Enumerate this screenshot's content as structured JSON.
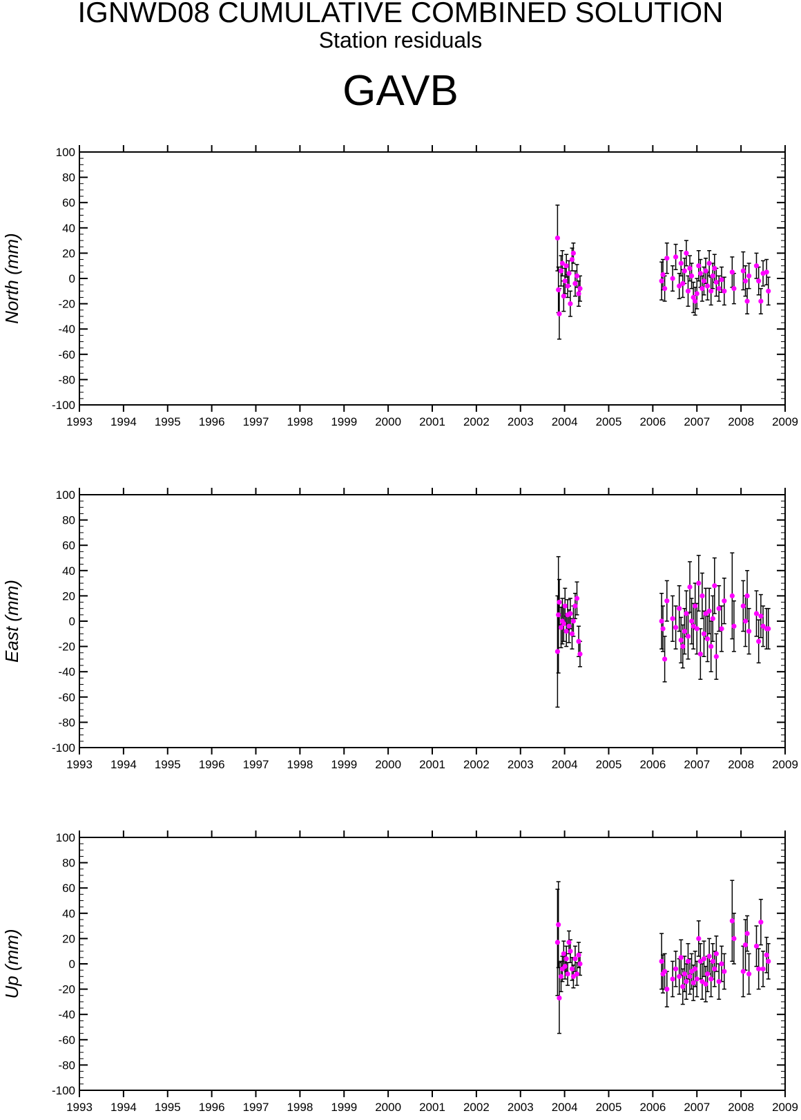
{
  "title": "IGNWD08 CUMULATIVE COMBINED SOLUTION",
  "subtitle": "Station residuals",
  "station": "GAVB",
  "colors": {
    "point": "#ff00ff",
    "errorbar": "#000000",
    "axis": "#000000"
  },
  "chart_data": [
    {
      "type": "scatter",
      "ylabel": "North (mm)",
      "xlim": [
        1993,
        2009
      ],
      "ylim": [
        -100,
        100
      ],
      "x_ticks": [
        "1993",
        "1994",
        "1995",
        "1996",
        "1997",
        "1998",
        "1999",
        "2000",
        "2001",
        "2002",
        "2003",
        "2004",
        "2005",
        "2006",
        "2007",
        "2008",
        "2009"
      ],
      "y_ticks": [
        "100",
        "80",
        "60",
        "40",
        "20",
        "0",
        "-20",
        "-40",
        "-60",
        "-80",
        "-100"
      ],
      "points": [
        {
          "x": 2003.84,
          "y": 32,
          "err": 26
        },
        {
          "x": 2003.86,
          "y": -9,
          "err": 18
        },
        {
          "x": 2003.88,
          "y": -28,
          "err": 20
        },
        {
          "x": 2003.92,
          "y": 6,
          "err": 12
        },
        {
          "x": 2003.95,
          "y": 12,
          "err": 10
        },
        {
          "x": 2003.98,
          "y": -14,
          "err": 12
        },
        {
          "x": 2004.01,
          "y": -2,
          "err": 10
        },
        {
          "x": 2004.04,
          "y": 10,
          "err": 9
        },
        {
          "x": 2004.07,
          "y": -6,
          "err": 9
        },
        {
          "x": 2004.1,
          "y": 4,
          "err": 10
        },
        {
          "x": 2004.13,
          "y": -20,
          "err": 10
        },
        {
          "x": 2004.17,
          "y": 15,
          "err": 9
        },
        {
          "x": 2004.2,
          "y": 20,
          "err": 8
        },
        {
          "x": 2004.24,
          "y": -4,
          "err": 10
        },
        {
          "x": 2004.28,
          "y": 2,
          "err": 9
        },
        {
          "x": 2004.32,
          "y": -12,
          "err": 10
        },
        {
          "x": 2004.35,
          "y": -8,
          "err": 10
        },
        {
          "x": 2006.2,
          "y": -2,
          "err": 15
        },
        {
          "x": 2006.23,
          "y": 3,
          "err": 12
        },
        {
          "x": 2006.27,
          "y": -8,
          "err": 10
        },
        {
          "x": 2006.32,
          "y": 16,
          "err": 12
        },
        {
          "x": 2006.45,
          "y": 0,
          "err": 10
        },
        {
          "x": 2006.52,
          "y": 17,
          "err": 10
        },
        {
          "x": 2006.6,
          "y": -6,
          "err": 10
        },
        {
          "x": 2006.64,
          "y": 12,
          "err": 10
        },
        {
          "x": 2006.68,
          "y": -4,
          "err": 11
        },
        {
          "x": 2006.72,
          "y": 6,
          "err": 10
        },
        {
          "x": 2006.76,
          "y": 20,
          "err": 10
        },
        {
          "x": 2006.8,
          "y": -10,
          "err": 12
        },
        {
          "x": 2006.84,
          "y": 8,
          "err": 10
        },
        {
          "x": 2006.88,
          "y": 2,
          "err": 10
        },
        {
          "x": 2006.92,
          "y": -15,
          "err": 12
        },
        {
          "x": 2006.96,
          "y": -18,
          "err": 11
        },
        {
          "x": 2007.0,
          "y": -12,
          "err": 12
        },
        {
          "x": 2007.04,
          "y": 10,
          "err": 12
        },
        {
          "x": 2007.08,
          "y": 4,
          "err": 11
        },
        {
          "x": 2007.12,
          "y": -8,
          "err": 10
        },
        {
          "x": 2007.16,
          "y": -2,
          "err": 11
        },
        {
          "x": 2007.2,
          "y": 6,
          "err": 10
        },
        {
          "x": 2007.24,
          "y": -6,
          "err": 11
        },
        {
          "x": 2007.28,
          "y": 12,
          "err": 10
        },
        {
          "x": 2007.32,
          "y": -10,
          "err": 11
        },
        {
          "x": 2007.36,
          "y": 2,
          "err": 10
        },
        {
          "x": 2007.4,
          "y": 8,
          "err": 11
        },
        {
          "x": 2007.44,
          "y": -3,
          "err": 11
        },
        {
          "x": 2007.5,
          "y": -8,
          "err": 10
        },
        {
          "x": 2007.56,
          "y": -1,
          "err": 10
        },
        {
          "x": 2007.62,
          "y": -10,
          "err": 11
        },
        {
          "x": 2007.8,
          "y": 5,
          "err": 12
        },
        {
          "x": 2007.84,
          "y": -8,
          "err": 12
        },
        {
          "x": 2008.05,
          "y": 6,
          "err": 15
        },
        {
          "x": 2008.1,
          "y": -2,
          "err": 12
        },
        {
          "x": 2008.14,
          "y": -18,
          "err": 10
        },
        {
          "x": 2008.18,
          "y": 2,
          "err": 10
        },
        {
          "x": 2008.35,
          "y": 10,
          "err": 10
        },
        {
          "x": 2008.4,
          "y": -2,
          "err": 11
        },
        {
          "x": 2008.45,
          "y": -18,
          "err": 10
        },
        {
          "x": 2008.5,
          "y": 4,
          "err": 10
        },
        {
          "x": 2008.58,
          "y": 5,
          "err": 10
        },
        {
          "x": 2008.62,
          "y": -10,
          "err": 11
        }
      ]
    },
    {
      "type": "scatter",
      "ylabel": "East (mm)",
      "xlim": [
        1993,
        2009
      ],
      "ylim": [
        -100,
        100
      ],
      "x_ticks": [
        "1993",
        "1994",
        "1995",
        "1996",
        "1997",
        "1998",
        "1999",
        "2000",
        "2001",
        "2002",
        "2003",
        "2004",
        "2005",
        "2006",
        "2007",
        "2008",
        "2009"
      ],
      "y_ticks": [
        "100",
        "80",
        "60",
        "40",
        "20",
        "0",
        "-20",
        "-40",
        "-60",
        "-80",
        "-100"
      ],
      "points": [
        {
          "x": 2003.84,
          "y": -24,
          "err": 44
        },
        {
          "x": 2003.86,
          "y": 5,
          "err": 46
        },
        {
          "x": 2003.88,
          "y": 15,
          "err": 18
        },
        {
          "x": 2003.92,
          "y": -5,
          "err": 16
        },
        {
          "x": 2003.95,
          "y": 0,
          "err": 18
        },
        {
          "x": 2003.98,
          "y": -2,
          "err": 14
        },
        {
          "x": 2004.01,
          "y": 12,
          "err": 14
        },
        {
          "x": 2004.04,
          "y": -8,
          "err": 12
        },
        {
          "x": 2004.07,
          "y": 5,
          "err": 12
        },
        {
          "x": 2004.1,
          "y": -4,
          "err": 13
        },
        {
          "x": 2004.13,
          "y": 6,
          "err": 12
        },
        {
          "x": 2004.17,
          "y": -10,
          "err": 12
        },
        {
          "x": 2004.2,
          "y": 0,
          "err": 12
        },
        {
          "x": 2004.24,
          "y": 12,
          "err": 10
        },
        {
          "x": 2004.28,
          "y": 18,
          "err": 13
        },
        {
          "x": 2004.32,
          "y": -16,
          "err": 12
        },
        {
          "x": 2004.35,
          "y": -26,
          "err": 10
        },
        {
          "x": 2006.2,
          "y": 0,
          "err": 22
        },
        {
          "x": 2006.23,
          "y": -6,
          "err": 18
        },
        {
          "x": 2006.27,
          "y": -30,
          "err": 18
        },
        {
          "x": 2006.32,
          "y": 16,
          "err": 16
        },
        {
          "x": 2006.45,
          "y": 2,
          "err": 18
        },
        {
          "x": 2006.52,
          "y": -5,
          "err": 17
        },
        {
          "x": 2006.6,
          "y": 10,
          "err": 18
        },
        {
          "x": 2006.64,
          "y": -15,
          "err": 18
        },
        {
          "x": 2006.68,
          "y": -20,
          "err": 17
        },
        {
          "x": 2006.72,
          "y": -8,
          "err": 18
        },
        {
          "x": 2006.76,
          "y": 6,
          "err": 18
        },
        {
          "x": 2006.8,
          "y": -12,
          "err": 18
        },
        {
          "x": 2006.84,
          "y": 27,
          "err": 20
        },
        {
          "x": 2006.88,
          "y": 0,
          "err": 18
        },
        {
          "x": 2006.92,
          "y": -4,
          "err": 18
        },
        {
          "x": 2006.96,
          "y": 12,
          "err": 18
        },
        {
          "x": 2007.0,
          "y": -6,
          "err": 20
        },
        {
          "x": 2007.04,
          "y": 30,
          "err": 22
        },
        {
          "x": 2007.08,
          "y": -26,
          "err": 20
        },
        {
          "x": 2007.12,
          "y": 20,
          "err": 18
        },
        {
          "x": 2007.16,
          "y": -10,
          "err": 18
        },
        {
          "x": 2007.2,
          "y": 6,
          "err": 20
        },
        {
          "x": 2007.24,
          "y": -14,
          "err": 18
        },
        {
          "x": 2007.28,
          "y": 8,
          "err": 18
        },
        {
          "x": 2007.32,
          "y": -20,
          "err": 20
        },
        {
          "x": 2007.36,
          "y": 2,
          "err": 18
        },
        {
          "x": 2007.4,
          "y": 28,
          "err": 22
        },
        {
          "x": 2007.44,
          "y": -28,
          "err": 18
        },
        {
          "x": 2007.5,
          "y": 10,
          "err": 18
        },
        {
          "x": 2007.56,
          "y": -6,
          "err": 18
        },
        {
          "x": 2007.62,
          "y": 16,
          "err": 18
        },
        {
          "x": 2007.8,
          "y": 20,
          "err": 34
        },
        {
          "x": 2007.84,
          "y": -4,
          "err": 20
        },
        {
          "x": 2008.05,
          "y": 12,
          "err": 20
        },
        {
          "x": 2008.1,
          "y": 0,
          "err": 20
        },
        {
          "x": 2008.14,
          "y": 20,
          "err": 20
        },
        {
          "x": 2008.18,
          "y": -8,
          "err": 18
        },
        {
          "x": 2008.35,
          "y": 6,
          "err": 18
        },
        {
          "x": 2008.4,
          "y": -16,
          "err": 17
        },
        {
          "x": 2008.45,
          "y": 4,
          "err": 17
        },
        {
          "x": 2008.5,
          "y": -4,
          "err": 16
        },
        {
          "x": 2008.58,
          "y": -6,
          "err": 16
        },
        {
          "x": 2008.62,
          "y": -6,
          "err": 16
        }
      ]
    },
    {
      "type": "scatter",
      "ylabel": "Up (mm)",
      "xlim": [
        1993,
        2009
      ],
      "ylim": [
        -100,
        100
      ],
      "x_ticks": [
        "1993",
        "1994",
        "1995",
        "1996",
        "1997",
        "1998",
        "1999",
        "2000",
        "2001",
        "2002",
        "2003",
        "2004",
        "2005",
        "2006",
        "2007",
        "2008",
        "2009"
      ],
      "y_ticks": [
        "100",
        "80",
        "60",
        "40",
        "20",
        "0",
        "-20",
        "-40",
        "-60",
        "-80",
        "-100"
      ],
      "points": [
        {
          "x": 2003.84,
          "y": 17,
          "err": 42
        },
        {
          "x": 2003.86,
          "y": 31,
          "err": 34
        },
        {
          "x": 2003.88,
          "y": -27,
          "err": 28
        },
        {
          "x": 2003.92,
          "y": -10,
          "err": 12
        },
        {
          "x": 2003.95,
          "y": -4,
          "err": 10
        },
        {
          "x": 2003.98,
          "y": 8,
          "err": 10
        },
        {
          "x": 2004.01,
          "y": -2,
          "err": 10
        },
        {
          "x": 2004.04,
          "y": 4,
          "err": 10
        },
        {
          "x": 2004.07,
          "y": -8,
          "err": 9
        },
        {
          "x": 2004.1,
          "y": 17,
          "err": 9
        },
        {
          "x": 2004.13,
          "y": 10,
          "err": 9
        },
        {
          "x": 2004.17,
          "y": -4,
          "err": 9
        },
        {
          "x": 2004.2,
          "y": -10,
          "err": 9
        },
        {
          "x": 2004.24,
          "y": 4,
          "err": 10
        },
        {
          "x": 2004.28,
          "y": -8,
          "err": 9
        },
        {
          "x": 2004.32,
          "y": 7,
          "err": 10
        },
        {
          "x": 2004.35,
          "y": 0,
          "err": 9
        },
        {
          "x": 2006.2,
          "y": 2,
          "err": 22
        },
        {
          "x": 2006.23,
          "y": -8,
          "err": 15
        },
        {
          "x": 2006.27,
          "y": -6,
          "err": 14
        },
        {
          "x": 2006.32,
          "y": -20,
          "err": 14
        },
        {
          "x": 2006.45,
          "y": -12,
          "err": 14
        },
        {
          "x": 2006.52,
          "y": -4,
          "err": 14
        },
        {
          "x": 2006.6,
          "y": -10,
          "err": 14
        },
        {
          "x": 2006.64,
          "y": 5,
          "err": 14
        },
        {
          "x": 2006.68,
          "y": -18,
          "err": 14
        },
        {
          "x": 2006.72,
          "y": -8,
          "err": 14
        },
        {
          "x": 2006.76,
          "y": -14,
          "err": 14
        },
        {
          "x": 2006.8,
          "y": 2,
          "err": 14
        },
        {
          "x": 2006.84,
          "y": -10,
          "err": 14
        },
        {
          "x": 2006.88,
          "y": -6,
          "err": 14
        },
        {
          "x": 2006.92,
          "y": -15,
          "err": 14
        },
        {
          "x": 2006.96,
          "y": -4,
          "err": 14
        },
        {
          "x": 2007.0,
          "y": -12,
          "err": 14
        },
        {
          "x": 2007.04,
          "y": 20,
          "err": 14
        },
        {
          "x": 2007.08,
          "y": 2,
          "err": 14
        },
        {
          "x": 2007.12,
          "y": -14,
          "err": 14
        },
        {
          "x": 2007.16,
          "y": 4,
          "err": 14
        },
        {
          "x": 2007.2,
          "y": -16,
          "err": 14
        },
        {
          "x": 2007.24,
          "y": -8,
          "err": 14
        },
        {
          "x": 2007.28,
          "y": 6,
          "err": 14
        },
        {
          "x": 2007.32,
          "y": -12,
          "err": 14
        },
        {
          "x": 2007.36,
          "y": 2,
          "err": 14
        },
        {
          "x": 2007.4,
          "y": -4,
          "err": 14
        },
        {
          "x": 2007.44,
          "y": 8,
          "err": 14
        },
        {
          "x": 2007.5,
          "y": -14,
          "err": 14
        },
        {
          "x": 2007.56,
          "y": 0,
          "err": 14
        },
        {
          "x": 2007.62,
          "y": -6,
          "err": 14
        },
        {
          "x": 2007.8,
          "y": 34,
          "err": 32
        },
        {
          "x": 2007.84,
          "y": 20,
          "err": 20
        },
        {
          "x": 2008.05,
          "y": -6,
          "err": 20
        },
        {
          "x": 2008.1,
          "y": 15,
          "err": 20
        },
        {
          "x": 2008.14,
          "y": 24,
          "err": 14
        },
        {
          "x": 2008.18,
          "y": -8,
          "err": 16
        },
        {
          "x": 2008.35,
          "y": 14,
          "err": 16
        },
        {
          "x": 2008.4,
          "y": -4,
          "err": 16
        },
        {
          "x": 2008.45,
          "y": 33,
          "err": 18
        },
        {
          "x": 2008.5,
          "y": -4,
          "err": 14
        },
        {
          "x": 2008.58,
          "y": 7,
          "err": 14
        },
        {
          "x": 2008.62,
          "y": 2,
          "err": 14
        }
      ]
    }
  ]
}
